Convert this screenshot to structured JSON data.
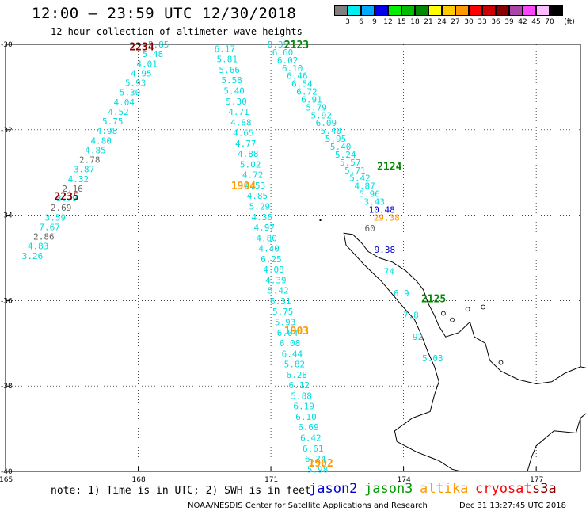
{
  "header": {
    "title": "12:00 – 23:59 UTC 12/30/2018",
    "subtitle": "12 hour collection of altimeter wave heights"
  },
  "legend": {
    "unit": "(ft)",
    "items": [
      {
        "label": "3",
        "color": "#7f7f7f"
      },
      {
        "label": "6",
        "color": "#00eeee"
      },
      {
        "label": "9",
        "color": "#00aaff"
      },
      {
        "label": "12",
        "color": "#0000ee"
      },
      {
        "label": "15",
        "color": "#00ee00"
      },
      {
        "label": "18",
        "color": "#00bb00"
      },
      {
        "label": "21",
        "color": "#008800"
      },
      {
        "label": "24",
        "color": "#ffff00"
      },
      {
        "label": "27",
        "color": "#ffcc00"
      },
      {
        "label": "30",
        "color": "#ff9900"
      },
      {
        "label": "33",
        "color": "#ff0000"
      },
      {
        "label": "36",
        "color": "#cc0000"
      },
      {
        "label": "39",
        "color": "#880000"
      },
      {
        "label": "42",
        "color": "#aa44aa"
      },
      {
        "label": "45",
        "color": "#ff44ff"
      },
      {
        "label": "70",
        "color": "#ffbbff"
      },
      {
        "label": "",
        "color": "#000000"
      }
    ]
  },
  "axes": {
    "lat_labels": [
      "-30",
      "-32",
      "-34",
      "-36",
      "-38",
      "-40"
    ],
    "lon_labels": [
      "165",
      "168",
      "171",
      "174",
      "177"
    ]
  },
  "passes": [
    {
      "label": "2234",
      "color": "#8b0000",
      "lon": 167.8,
      "lat": -30.05
    },
    {
      "label": "2235",
      "color": "#8b0000",
      "lon": 166.1,
      "lat": -33.55
    },
    {
      "label": "2123",
      "color": "#008800",
      "lon": 171.3,
      "lat": -30.0
    },
    {
      "label": "2124",
      "color": "#008800",
      "lon": 173.4,
      "lat": -32.85
    },
    {
      "label": "2125",
      "color": "#008800",
      "lon": 174.4,
      "lat": -35.95
    },
    {
      "label": "1904",
      "color": "#ff9900",
      "lon": 170.1,
      "lat": -33.3
    },
    {
      "label": "1903",
      "color": "#ff9900",
      "lon": 171.3,
      "lat": -36.7
    },
    {
      "label": "1902",
      "color": "#ff9900",
      "lon": 171.85,
      "lat": -39.8
    }
  ],
  "tracks": [
    {
      "name": "2234-2235",
      "points": [
        {
          "v": "5.85",
          "c": "#00dddd"
        },
        {
          "v": "5.48",
          "c": "#00dddd"
        },
        {
          "v": "4.01",
          "c": "#00dddd"
        },
        {
          "v": "4.95",
          "c": "#00dddd"
        },
        {
          "v": "5.93",
          "c": "#00dddd"
        },
        {
          "v": "5.30",
          "c": "#00dddd"
        },
        {
          "v": "4.04",
          "c": "#00dddd"
        },
        {
          "v": "4.52",
          "c": "#00dddd"
        },
        {
          "v": "5.75",
          "c": "#00dddd"
        },
        {
          "v": "4.98",
          "c": "#00dddd"
        },
        {
          "v": "4.80",
          "c": "#00dddd"
        },
        {
          "v": "4.85",
          "c": "#00dddd"
        },
        {
          "v": "2.78",
          "c": "#666666"
        },
        {
          "v": "3.87",
          "c": "#00dddd"
        },
        {
          "v": "4.32",
          "c": "#00dddd"
        },
        {
          "v": "2.16",
          "c": "#666666"
        },
        {
          "v": "3.79",
          "c": "#00dddd"
        },
        {
          "v": "2.69",
          "c": "#666666"
        },
        {
          "v": "3.59",
          "c": "#00dddd"
        },
        {
          "v": "7.67",
          "c": "#00dddd"
        },
        {
          "v": "2.86",
          "c": "#666666"
        },
        {
          "v": "4.83",
          "c": "#00dddd"
        },
        {
          "v": "3.26",
          "c": "#00dddd"
        }
      ]
    },
    {
      "name": "1904-1902",
      "points": [
        {
          "v": "6.17",
          "c": "#00dddd"
        },
        {
          "v": "5.81",
          "c": "#00dddd"
        },
        {
          "v": "5.66",
          "c": "#00dddd"
        },
        {
          "v": "5.58",
          "c": "#00dddd"
        },
        {
          "v": "5.40",
          "c": "#00dddd"
        },
        {
          "v": "5.30",
          "c": "#00dddd"
        },
        {
          "v": "4.71",
          "c": "#00dddd"
        },
        {
          "v": "4.88",
          "c": "#00dddd"
        },
        {
          "v": "4.65",
          "c": "#00dddd"
        },
        {
          "v": "4.77",
          "c": "#00dddd"
        },
        {
          "v": "4.88",
          "c": "#00dddd"
        },
        {
          "v": "5.02",
          "c": "#00dddd"
        },
        {
          "v": "4.72",
          "c": "#00dddd"
        },
        {
          "v": "4.53",
          "c": "#00dddd"
        },
        {
          "v": "4.85",
          "c": "#00dddd"
        },
        {
          "v": "5.29",
          "c": "#00dddd"
        },
        {
          "v": "4.36",
          "c": "#00dddd"
        },
        {
          "v": "4.97",
          "c": "#00dddd"
        },
        {
          "v": "4.80",
          "c": "#00dddd"
        },
        {
          "v": "4.40",
          "c": "#00dddd"
        },
        {
          "v": "6.25",
          "c": "#00dddd"
        },
        {
          "v": "4.08",
          "c": "#00dddd"
        },
        {
          "v": "4.39",
          "c": "#00dddd"
        },
        {
          "v": "5.42",
          "c": "#00dddd"
        },
        {
          "v": "6.31",
          "c": "#00dddd"
        },
        {
          "v": "5.75",
          "c": "#00dddd"
        },
        {
          "v": "5.93",
          "c": "#00dddd"
        },
        {
          "v": "6.04",
          "c": "#00dddd"
        },
        {
          "v": "6.08",
          "c": "#00dddd"
        },
        {
          "v": "6.44",
          "c": "#00dddd"
        },
        {
          "v": "5.82",
          "c": "#00dddd"
        },
        {
          "v": "6.28",
          "c": "#00dddd"
        },
        {
          "v": "6.12",
          "c": "#00dddd"
        },
        {
          "v": "5.88",
          "c": "#00dddd"
        },
        {
          "v": "6.19",
          "c": "#00dddd"
        },
        {
          "v": "6.10",
          "c": "#00dddd"
        },
        {
          "v": "6.69",
          "c": "#00dddd"
        },
        {
          "v": "6.42",
          "c": "#00dddd"
        },
        {
          "v": "6.61",
          "c": "#00dddd"
        },
        {
          "v": "6.24",
          "c": "#00dddd"
        },
        {
          "v": "5.98",
          "c": "#00dddd"
        }
      ]
    },
    {
      "name": "2123-2124",
      "points": [
        {
          "v": "8.35",
          "c": "#00dddd"
        },
        {
          "v": "6.60",
          "c": "#00dddd"
        },
        {
          "v": "6.02",
          "c": "#00dddd"
        },
        {
          "v": "6.10",
          "c": "#00dddd"
        },
        {
          "v": "6.46",
          "c": "#00dddd"
        },
        {
          "v": "6.54",
          "c": "#00dddd"
        },
        {
          "v": "6.72",
          "c": "#00dddd"
        },
        {
          "v": "6.91",
          "c": "#00dddd"
        },
        {
          "v": "5.79",
          "c": "#00dddd"
        },
        {
          "v": "5.92",
          "c": "#00dddd"
        },
        {
          "v": "6.09",
          "c": "#00dddd"
        },
        {
          "v": "5.40",
          "c": "#00dddd"
        },
        {
          "v": "5.95",
          "c": "#00dddd"
        },
        {
          "v": "5.40",
          "c": "#00dddd"
        },
        {
          "v": "5.24",
          "c": "#00dddd"
        },
        {
          "v": "5.57",
          "c": "#00dddd"
        },
        {
          "v": "5.71",
          "c": "#00dddd"
        },
        {
          "v": "5.42",
          "c": "#00dddd"
        },
        {
          "v": "4.87",
          "c": "#00dddd"
        },
        {
          "v": "5.96",
          "c": "#00dddd"
        },
        {
          "v": "3.43",
          "c": "#00dddd"
        },
        {
          "v": "10.48",
          "c": "#0000cc"
        },
        {
          "v": "29.38",
          "c": "#ff9900"
        }
      ]
    },
    {
      "name": "2125",
      "points": [
        {
          "v": "60",
          "c": "#666666"
        },
        {
          "v": "9.38",
          "c": "#0000cc"
        },
        {
          "v": "74",
          "c": "#00dddd"
        },
        {
          "v": "6.9",
          "c": "#00dddd"
        },
        {
          "v": "7.8",
          "c": "#00dddd"
        },
        {
          "v": "92",
          "c": "#00dddd"
        },
        {
          "v": "5.03",
          "c": "#00dddd"
        }
      ]
    }
  ],
  "note": "note:  1) Time is in UTC; 2) SWH is in feet",
  "satellites": [
    {
      "name": "jason2",
      "color": "#0000cc"
    },
    {
      "name": "jason3",
      "color": "#009900"
    },
    {
      "name": "altika",
      "color": "#ff9900"
    },
    {
      "name": "cryosat",
      "color": "#ff0000"
    },
    {
      "name": "s3a",
      "color": "#8b0000"
    }
  ],
  "footer": "NOAA/NESDIS Center for Satellite Applications and Research",
  "stamp": "Dec 31 13:27:45 UTC 2018"
}
